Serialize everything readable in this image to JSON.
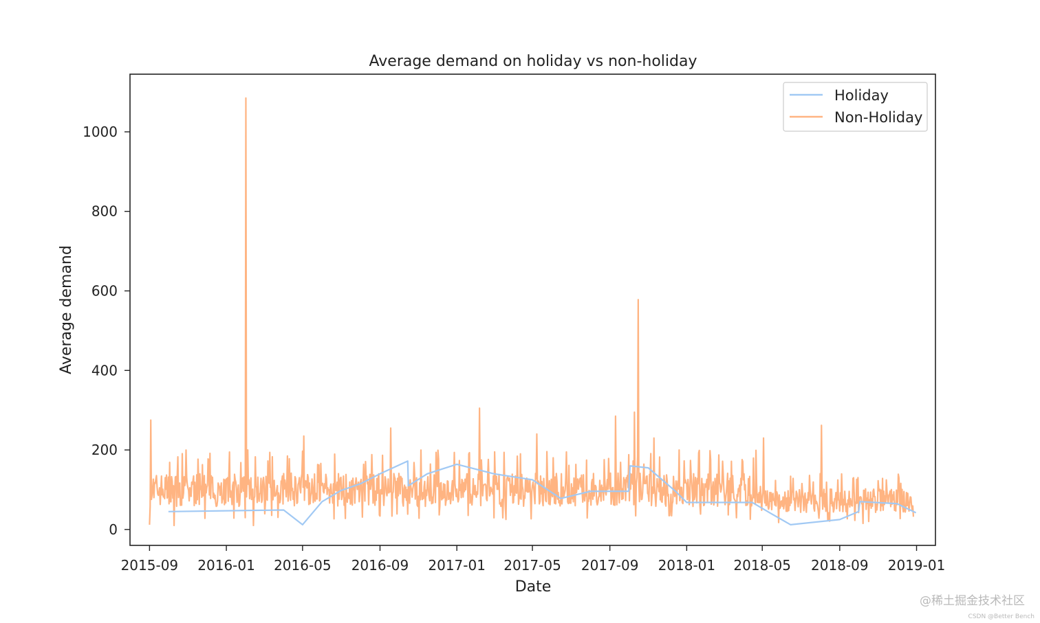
{
  "chart_data": {
    "type": "line",
    "title": "Average demand on holiday vs non-holiday",
    "xlabel": "Date",
    "ylabel": "Average demand",
    "xlim": [
      "2015-08-01",
      "2019-01-31"
    ],
    "ylim": [
      -40,
      1145
    ],
    "x_ticks": [
      "2015-09",
      "2016-01",
      "2016-05",
      "2016-09",
      "2017-01",
      "2017-05",
      "2017-09",
      "2018-01",
      "2018-05",
      "2018-09",
      "2019-01"
    ],
    "y_ticks": [
      0,
      200,
      400,
      600,
      800,
      1000
    ],
    "legend_position": "top-right",
    "grid": false,
    "series": [
      {
        "name": "Holiday",
        "color": "#a1c9f4",
        "points": [
          [
            "2015-10-01",
            45
          ],
          [
            "2016-04-01",
            49
          ],
          [
            "2016-05-01",
            12
          ],
          [
            "2016-06-01",
            70
          ],
          [
            "2016-07-01",
            98
          ],
          [
            "2016-08-01",
            115
          ],
          [
            "2016-09-01",
            140
          ],
          [
            "2016-10-15",
            172
          ],
          [
            "2016-10-16",
            110
          ],
          [
            "2016-11-15",
            140
          ],
          [
            "2017-01-01",
            164
          ],
          [
            "2017-03-01",
            140
          ],
          [
            "2017-05-01",
            125
          ],
          [
            "2017-06-15",
            78
          ],
          [
            "2017-08-01",
            96
          ],
          [
            "2017-10-01",
            96
          ],
          [
            "2017-10-03",
            160
          ],
          [
            "2017-11-01",
            155
          ],
          [
            "2017-12-15",
            95
          ],
          [
            "2018-01-01",
            68
          ],
          [
            "2018-03-01",
            68
          ],
          [
            "2018-04-15",
            68
          ],
          [
            "2018-05-15",
            40
          ],
          [
            "2018-06-15",
            12
          ],
          [
            "2018-09-01",
            25
          ],
          [
            "2018-10-01",
            45
          ],
          [
            "2018-10-03",
            70
          ],
          [
            "2018-12-01",
            65
          ],
          [
            "2018-12-31",
            42
          ]
        ]
      },
      {
        "name": "Non-Holiday",
        "color": "#ffb482",
        "range": [
          "2015-09-01",
          "2018-12-27"
        ],
        "typical_range": [
          40,
          160
        ],
        "peaks": [
          [
            "2015-09-01",
            12
          ],
          [
            "2015-09-03",
            275
          ],
          [
            "2015-09-08",
            80
          ],
          [
            "2015-10-10",
            10
          ],
          [
            "2016-02-01",
            1085
          ],
          [
            "2016-02-04",
            200
          ],
          [
            "2016-02-13",
            10
          ],
          [
            "2016-05-03",
            235
          ],
          [
            "2016-09-18",
            255
          ],
          [
            "2017-01-20",
            190
          ],
          [
            "2017-02-06",
            305
          ],
          [
            "2017-02-08",
            60
          ],
          [
            "2017-05-08",
            240
          ],
          [
            "2017-09-10",
            285
          ],
          [
            "2017-10-10",
            295
          ],
          [
            "2017-10-16",
            578
          ],
          [
            "2017-10-18",
            70
          ],
          [
            "2017-11-10",
            230
          ],
          [
            "2018-05-03",
            230
          ],
          [
            "2018-08-03",
            262
          ],
          [
            "2018-12-27",
            32
          ]
        ]
      }
    ]
  }
}
